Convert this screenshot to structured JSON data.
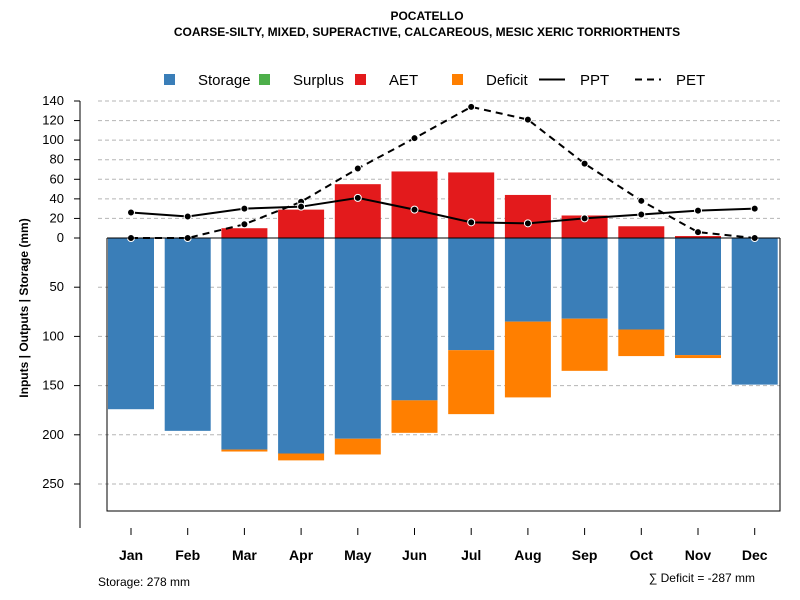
{
  "chart_data": {
    "type": "bar",
    "title": "POCATELLO",
    "subtitle": "COARSE-SILTY, MIXED, SUPERACTIVE, CALCAREOUS, MESIC XERIC TORRIORTHENTS",
    "ylabel": "Inputs | Outputs | Storage     (mm)",
    "categories": [
      "Jan",
      "Feb",
      "Mar",
      "Apr",
      "May",
      "Jun",
      "Jul",
      "Aug",
      "Sep",
      "Oct",
      "Nov",
      "Dec"
    ],
    "upper_ylim": [
      0,
      140
    ],
    "upper_ticks": [
      0,
      20,
      40,
      60,
      80,
      100,
      120,
      140
    ],
    "lower_ylim": [
      0,
      278
    ],
    "lower_ticks": [
      50,
      100,
      150,
      200,
      250
    ],
    "legend": [
      {
        "label": "Storage",
        "kind": "box",
        "color": "#3a7eb8"
      },
      {
        "label": "Surplus",
        "kind": "box",
        "color": "#4daf4a"
      },
      {
        "label": "AET",
        "kind": "box",
        "color": "#e31a1c"
      },
      {
        "label": "Deficit",
        "kind": "box",
        "color": "#ff7f00"
      },
      {
        "label": "PPT",
        "kind": "line",
        "color": "#000000"
      },
      {
        "label": "PET",
        "kind": "dash",
        "color": "#000000"
      }
    ],
    "series": [
      {
        "name": "Storage",
        "color": "#3a7eb8",
        "values": [
          174,
          196,
          215,
          219,
          204,
          165,
          114,
          85,
          82,
          93,
          119,
          149
        ]
      },
      {
        "name": "Surplus",
        "color": "#4daf4a",
        "values": [
          0,
          0,
          0,
          0,
          0,
          0,
          0,
          0,
          0,
          0,
          0,
          0
        ]
      },
      {
        "name": "AET",
        "color": "#e31a1c",
        "values": [
          0,
          0,
          10,
          29,
          55,
          68,
          67,
          44,
          23,
          12,
          2,
          0
        ]
      },
      {
        "name": "Deficit",
        "color": "#ff7f00",
        "values": [
          0,
          0,
          2,
          7,
          16,
          33,
          65,
          77,
          53,
          27,
          3,
          0
        ]
      },
      {
        "name": "PPT",
        "color": "#000000",
        "values": [
          26,
          22,
          30,
          32,
          41,
          29,
          16,
          15,
          20,
          24,
          28,
          30
        ]
      },
      {
        "name": "PET",
        "color": "#000000",
        "values": [
          0,
          0,
          14,
          37,
          71,
          102,
          134,
          121,
          76,
          38,
          6,
          0
        ]
      }
    ],
    "footer_left": "Storage: 278 mm",
    "footer_right": "∑ Deficit = -287 mm"
  }
}
